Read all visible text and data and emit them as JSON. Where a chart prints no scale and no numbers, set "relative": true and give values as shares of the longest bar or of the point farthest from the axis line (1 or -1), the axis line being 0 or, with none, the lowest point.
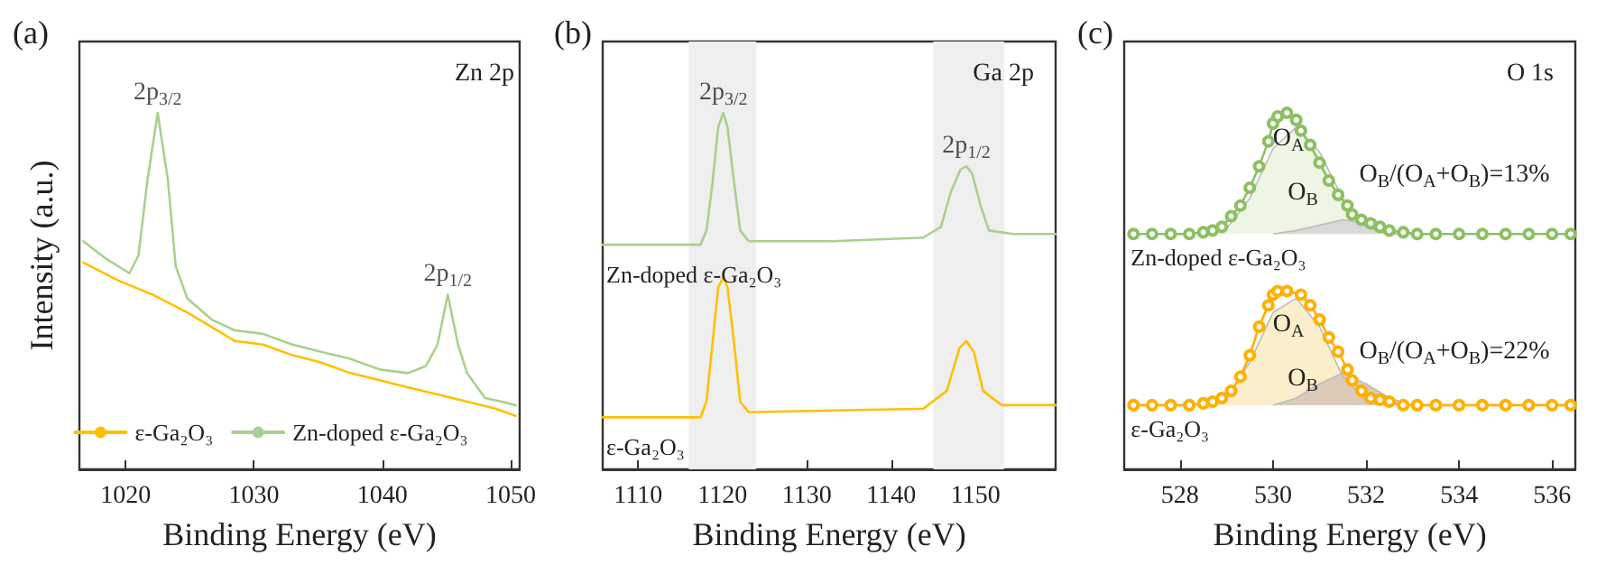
{
  "chart_data": [
    {
      "type": "line",
      "title": "(a)",
      "xlabel": "Binding Energy (eV)",
      "ylabel": "Intensity (a.u.)",
      "relative": true,
      "xlim": [
        1016.4,
        1050.7
      ],
      "xticks": [
        1020,
        1030,
        1040,
        1050
      ],
      "legend": "bottom",
      "marker": "none",
      "line_style": "solid",
      "annotations": [
        "Zn 2p",
        {
          "text": "2p$_{3/2}$",
          "x": 1022.5,
          "y": 1.0
        },
        {
          "text": "2p$_{1/2}$",
          "x": 1045.1,
          "y": 0.49
        }
      ],
      "series": [
        {
          "name": "ε-Ga₂O₃",
          "color": "#ffc000",
          "x": [
            1016.7,
            1019.4,
            1022.1,
            1024.8,
            1028.5,
            1030.7,
            1033.0,
            1035.2,
            1037.5,
            1039.8,
            1042.0,
            1044.3,
            1046.6,
            1048.8,
            1050.4
          ],
          "values": [
            0.58,
            0.53,
            0.49,
            0.44,
            0.36,
            0.35,
            0.32,
            0.3,
            0.27,
            0.25,
            0.23,
            0.21,
            0.19,
            0.17,
            0.15
          ]
        },
        {
          "name": "Zn-doped ε-Ga₂O₃",
          "color": "#a9d08e",
          "x": [
            1016.7,
            1018.5,
            1020.3,
            1021.0,
            1021.7,
            1022.5,
            1023.3,
            1023.9,
            1024.8,
            1026.7,
            1028.5,
            1030.7,
            1033.0,
            1035.2,
            1037.5,
            1039.8,
            1042.0,
            1043.4,
            1044.3,
            1045.1,
            1045.9,
            1046.6,
            1048.0,
            1049.3,
            1050.4
          ],
          "values": [
            0.64,
            0.59,
            0.55,
            0.6,
            0.81,
            1.0,
            0.81,
            0.57,
            0.48,
            0.42,
            0.39,
            0.38,
            0.35,
            0.33,
            0.31,
            0.28,
            0.27,
            0.29,
            0.35,
            0.49,
            0.35,
            0.27,
            0.2,
            0.19,
            0.18
          ]
        }
      ]
    },
    {
      "type": "line",
      "title": "(b)",
      "xlabel": "Binding Energy (eV)",
      "relative": true,
      "xlim": [
        1105.8,
        1159.5
      ],
      "xticks": [
        1110,
        1120,
        1130,
        1140,
        1150
      ],
      "marker": "none",
      "line_style": "solid",
      "bands": [
        {
          "axis": "x",
          "from": 1116,
          "to": 1124,
          "color": "#efefef"
        },
        {
          "axis": "x",
          "from": 1145,
          "to": 1153.4,
          "color": "#efefef"
        }
      ],
      "annotations": [
        "Ga 2p",
        {
          "text": "2p$_{3/2}$",
          "x": 1120.1,
          "y": 1.0
        },
        {
          "text": "2p$_{1/2}$",
          "x": 1148.9,
          "y": 0.85
        }
      ],
      "series": [
        {
          "name": "Zn-doped ε-Ga₂O₃",
          "color": "#a9d08e",
          "x": [
            1105.8,
            1117.4,
            1118.1,
            1118.8,
            1119.5,
            1120.1,
            1120.6,
            1121.4,
            1122.1,
            1123.1,
            1133.1,
            1143.8,
            1145.9,
            1147.1,
            1148.2,
            1148.9,
            1149.6,
            1150.6,
            1151.6,
            1154.5,
            1159.5
          ],
          "values": [
            0.63,
            0.63,
            0.67,
            0.8,
            0.96,
            1.0,
            0.96,
            0.8,
            0.67,
            0.64,
            0.64,
            0.65,
            0.68,
            0.78,
            0.84,
            0.85,
            0.83,
            0.74,
            0.67,
            0.66,
            0.66
          ]
        },
        {
          "name": "ε-Ga₂O₃",
          "color": "#ffc000",
          "x": [
            1105.8,
            1117.4,
            1118.1,
            1118.8,
            1119.5,
            1120.1,
            1120.6,
            1121.4,
            1122.1,
            1123.1,
            1133.1,
            1143.8,
            1146.6,
            1148.1,
            1148.9,
            1149.8,
            1150.9,
            1153.1,
            1159.5
          ],
          "values": [
            0.146,
            0.146,
            0.19,
            0.35,
            0.51,
            0.54,
            0.51,
            0.35,
            0.19,
            0.16,
            0.165,
            0.17,
            0.22,
            0.34,
            0.36,
            0.33,
            0.22,
            0.18,
            0.18
          ]
        }
      ]
    },
    {
      "type": "line",
      "title": "(c)",
      "xlabel": "Binding Energy (eV)",
      "relative": true,
      "xlim": [
        526.8,
        536.5
      ],
      "xticks": [
        528,
        530,
        532,
        534,
        536
      ],
      "marker": "circle",
      "line_style": "solid",
      "annotations": [
        "O 1s",
        "O$_{A}$",
        "O$_{B}$",
        "O$_{B}$/(O$_{A}$+O$_{B}$)=13%",
        "O$_{A}$",
        "O$_{B}$",
        "O$_{B}$/(O$_{A}$+O$_{B}$)=22%"
      ],
      "series": [
        {
          "type": "area",
          "marker": "none",
          "color": "#eef5e4",
          "x": [
            528.5,
            529.0,
            529.5,
            530.0,
            530.5,
            531.0,
            531.5,
            532.0,
            532.5,
            533.0
          ],
          "values": [
            0.66,
            0.675,
            0.76,
            0.9,
            0.96,
            0.89,
            0.76,
            0.68,
            0.66,
            0.66
          ]
        },
        {
          "type": "area",
          "marker": "none",
          "color": "#d9d9d9",
          "x": [
            530.0,
            530.5,
            531.0,
            531.5,
            532.0,
            532.5,
            533.0
          ],
          "values": [
            0.66,
            0.67,
            0.685,
            0.7,
            0.69,
            0.67,
            0.66
          ]
        },
        {
          "type": "area",
          "marker": "none",
          "color": "#fbeecb",
          "x": [
            528.5,
            529.0,
            529.5,
            530.0,
            530.5,
            531.0,
            531.5,
            532.0,
            532.5
          ],
          "values": [
            0.18,
            0.2,
            0.3,
            0.44,
            0.48,
            0.4,
            0.26,
            0.19,
            0.18
          ]
        },
        {
          "type": "area",
          "marker": "none",
          "color": "#dccbb8",
          "x": [
            530.0,
            530.5,
            531.0,
            531.5,
            532.0,
            532.5,
            533.0
          ],
          "values": [
            0.18,
            0.2,
            0.24,
            0.27,
            0.24,
            0.2,
            0.18
          ]
        },
        {
          "name": "Zn-doped ε-Ga₂O₃",
          "color": "#8cc063",
          "x": [
            527.0,
            527.4,
            527.8,
            528.2,
            528.5,
            528.7,
            528.9,
            529.1,
            529.3,
            529.5,
            529.7,
            529.9,
            530.0,
            530.1,
            530.3,
            530.5,
            530.6,
            530.8,
            531.0,
            531.2,
            531.4,
            531.6,
            531.7,
            531.9,
            532.1,
            532.3,
            532.5,
            532.8,
            533.1,
            533.5,
            534.0,
            534.5,
            535.0,
            535.5,
            536.0,
            536.4
          ],
          "values": [
            0.66,
            0.66,
            0.66,
            0.66,
            0.665,
            0.67,
            0.68,
            0.71,
            0.74,
            0.79,
            0.85,
            0.92,
            0.97,
            0.99,
            1.0,
            0.98,
            0.95,
            0.91,
            0.86,
            0.81,
            0.77,
            0.74,
            0.715,
            0.7,
            0.69,
            0.68,
            0.67,
            0.665,
            0.66,
            0.66,
            0.66,
            0.66,
            0.66,
            0.66,
            0.66,
            0.66
          ]
        },
        {
          "name": "ε-Ga₂O₃",
          "color": "#ffb000",
          "x": [
            527.0,
            527.4,
            527.8,
            528.2,
            528.5,
            528.7,
            528.9,
            529.1,
            529.3,
            529.5,
            529.7,
            529.9,
            530.0,
            530.1,
            530.3,
            530.6,
            530.8,
            531.0,
            531.2,
            531.4,
            531.6,
            531.7,
            531.9,
            532.1,
            532.3,
            532.5,
            532.8,
            533.1,
            533.5,
            534.0,
            534.5,
            535.0,
            535.5,
            536.0,
            536.4
          ],
          "values": [
            0.18,
            0.18,
            0.18,
            0.18,
            0.185,
            0.19,
            0.2,
            0.22,
            0.26,
            0.32,
            0.4,
            0.46,
            0.49,
            0.5,
            0.5,
            0.49,
            0.46,
            0.42,
            0.37,
            0.33,
            0.28,
            0.25,
            0.22,
            0.2,
            0.195,
            0.19,
            0.18,
            0.18,
            0.18,
            0.18,
            0.18,
            0.18,
            0.18,
            0.18,
            0.18
          ]
        }
      ]
    }
  ]
}
